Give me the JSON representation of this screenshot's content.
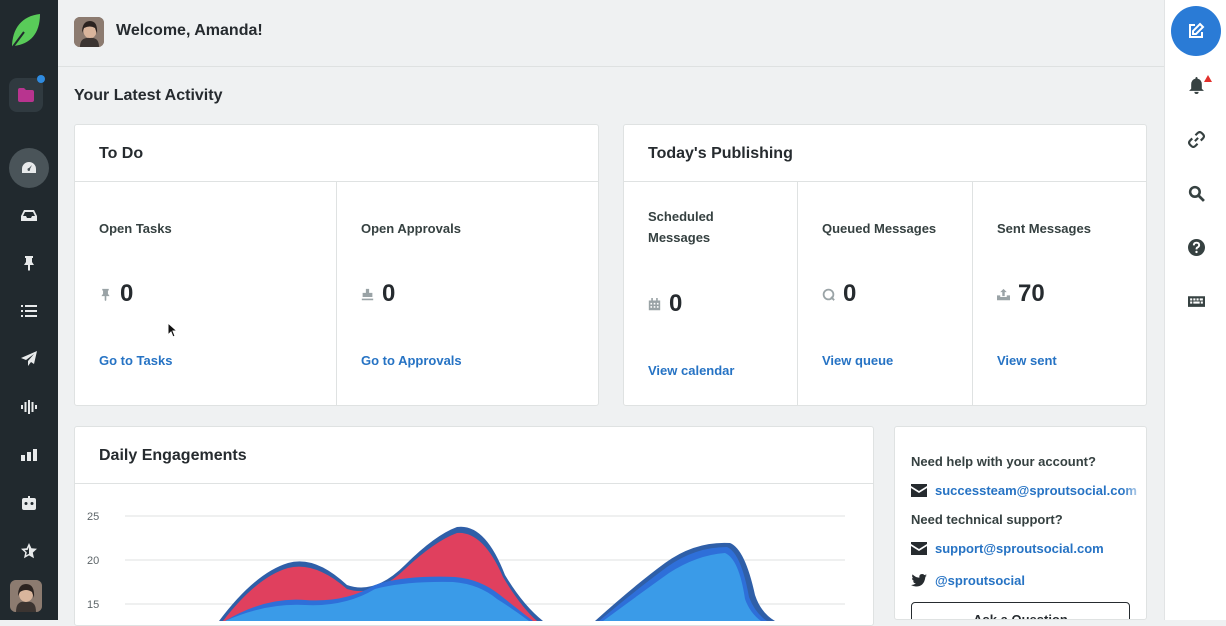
{
  "header": {
    "welcome": "Welcome, Amanda!"
  },
  "section_title": "Your Latest Activity",
  "todo": {
    "title": "To Do",
    "columns": [
      {
        "label": "Open Tasks",
        "value": "0",
        "link": "Go to Tasks",
        "icon": "pin-icon"
      },
      {
        "label": "Open Approvals",
        "value": "0",
        "link": "Go to Approvals",
        "icon": "stamp-icon"
      }
    ]
  },
  "publishing": {
    "title": "Today's Publishing",
    "columns": [
      {
        "label": "Scheduled Messages",
        "value": "0",
        "link": "View calendar",
        "icon": "calendar-icon"
      },
      {
        "label": "Queued Messages",
        "value": "0",
        "link": "View queue",
        "icon": "queue-icon"
      },
      {
        "label": "Sent Messages",
        "value": "70",
        "link": "View sent",
        "icon": "upload-tray-icon"
      }
    ]
  },
  "engagements": {
    "title": "Daily Engagements"
  },
  "chart_data": {
    "type": "area",
    "title": "Daily Engagements",
    "y_ticks": [
      "25",
      "20",
      "15"
    ],
    "ylim": [
      0,
      25
    ],
    "colors": [
      "#3a9be8",
      "#2e6fd9",
      "#e0405e",
      "#2f5fa8"
    ]
  },
  "help": {
    "account_question": "Need help with your account?",
    "account_email": "successteam@sproutsocial.com",
    "tech_question": "Need technical support?",
    "tech_email": "support@sproutsocial.com",
    "twitter": "@sproutsocial",
    "ask_button": "Ask a Question"
  },
  "colors": {
    "sidebar": "#21292e",
    "accent": "#2a7bd6",
    "link": "#2673c4",
    "brand": "#59cb59"
  }
}
